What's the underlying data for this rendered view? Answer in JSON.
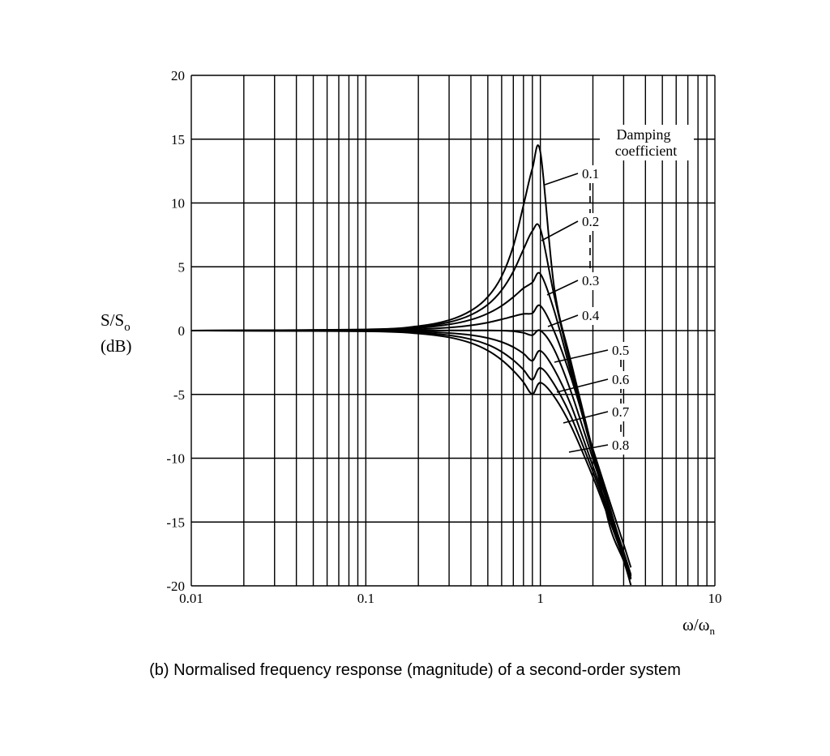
{
  "chart_data": {
    "type": "line",
    "title": "",
    "caption": "(b) Normalised frequency response (magnitude) of a second-order system",
    "xlabel": {
      "main": "ω/ω",
      "sub": "n"
    },
    "ylabel": {
      "line1_main": "S/S",
      "line1_sub": "o",
      "line2": "(dB)"
    },
    "xscale": "log",
    "xlim": [
      0.01,
      10
    ],
    "ylim": [
      -20,
      20
    ],
    "grid": true,
    "xticks": [
      {
        "value": 0.01,
        "label": "0.01"
      },
      {
        "value": 0.1,
        "label": "0.1"
      },
      {
        "value": 1,
        "label": "1"
      },
      {
        "value": 10,
        "label": "10"
      }
    ],
    "yticks": [
      {
        "value": 20,
        "label": "20"
      },
      {
        "value": 15,
        "label": "15"
      },
      {
        "value": 10,
        "label": "10"
      },
      {
        "value": 5,
        "label": "5"
      },
      {
        "value": 0,
        "label": "0"
      },
      {
        "value": -5,
        "label": "-5"
      },
      {
        "value": -10,
        "label": "-10"
      },
      {
        "value": -15,
        "label": "-15"
      },
      {
        "value": -20,
        "label": "-20"
      }
    ],
    "legend_title": [
      "Damping",
      "coefficient"
    ],
    "x": [
      0.01,
      0.1,
      0.2,
      0.3,
      0.4,
      0.5,
      0.6,
      0.7,
      0.8,
      0.9,
      1.0,
      1.2,
      1.5,
      2.0,
      2.5,
      3.0,
      3.3
    ],
    "series": [
      {
        "name": "0.1",
        "values": [
          0.0,
          0.09,
          0.35,
          0.82,
          1.56,
          2.64,
          4.25,
          6.62,
          9.81,
          12.69,
          13.98,
          3.39,
          -2.49,
          -9.46,
          -15.35,
          -18.05,
          -19.94
        ]
      },
      {
        "name": "0.2",
        "values": [
          0.0,
          0.07,
          0.28,
          0.66,
          1.23,
          2.04,
          3.17,
          4.63,
          6.36,
          7.8,
          7.96,
          2.75,
          -2.91,
          -9.4,
          -13.85,
          -17.56,
          -19.42
        ]
      },
      {
        "name": "0.3",
        "values": [
          0.0,
          0.05,
          0.21,
          0.48,
          0.85,
          1.34,
          1.94,
          2.63,
          3.32,
          3.77,
          4.44,
          1.57,
          -3.35,
          -9.65,
          -14.04,
          -17.37,
          -19.21
        ]
      },
      {
        "name": "0.4",
        "values": [
          0.0,
          0.02,
          0.1,
          0.24,
          0.41,
          0.63,
          0.88,
          1.12,
          1.31,
          1.36,
          1.94,
          -0.05,
          -3.7,
          -9.28,
          -13.42,
          -16.74,
          -18.56
        ]
      },
      {
        "name": "0.5",
        "values": [
          0.0,
          0.0,
          0.01,
          0.01,
          0.02,
          0.01,
          0.0,
          -0.05,
          -0.17,
          -0.36,
          0.0,
          -1.48,
          -4.81,
          -10.06,
          -14.09,
          -17.33,
          -19.12
        ]
      },
      {
        "name": "0.6",
        "values": [
          0.0,
          -0.02,
          -0.08,
          -0.19,
          -0.35,
          -0.58,
          -0.89,
          -1.29,
          -1.79,
          -2.36,
          -1.58,
          -3.03,
          -5.87,
          -10.62,
          -14.4,
          -17.53,
          -19.25
        ]
      },
      {
        "name": "0.7",
        "values": [
          0.0,
          -0.04,
          -0.16,
          -0.37,
          -0.68,
          -1.1,
          -1.66,
          -2.32,
          -3.06,
          -3.85,
          -2.92,
          -4.21,
          -6.75,
          -11.05,
          -14.67,
          -17.7,
          -19.38
        ]
      },
      {
        "name": "0.8",
        "values": [
          0.0,
          -0.06,
          -0.23,
          -0.53,
          -0.97,
          -1.56,
          -2.3,
          -3.14,
          -4.04,
          -4.98,
          -4.08,
          -5.17,
          -7.5,
          -11.47,
          -14.93,
          -17.87,
          -19.5
        ]
      }
    ],
    "curve_labels": [
      "0.1",
      "0.2",
      "0.3",
      "0.4",
      "0.5",
      "0.6",
      "0.7",
      "0.8"
    ]
  }
}
